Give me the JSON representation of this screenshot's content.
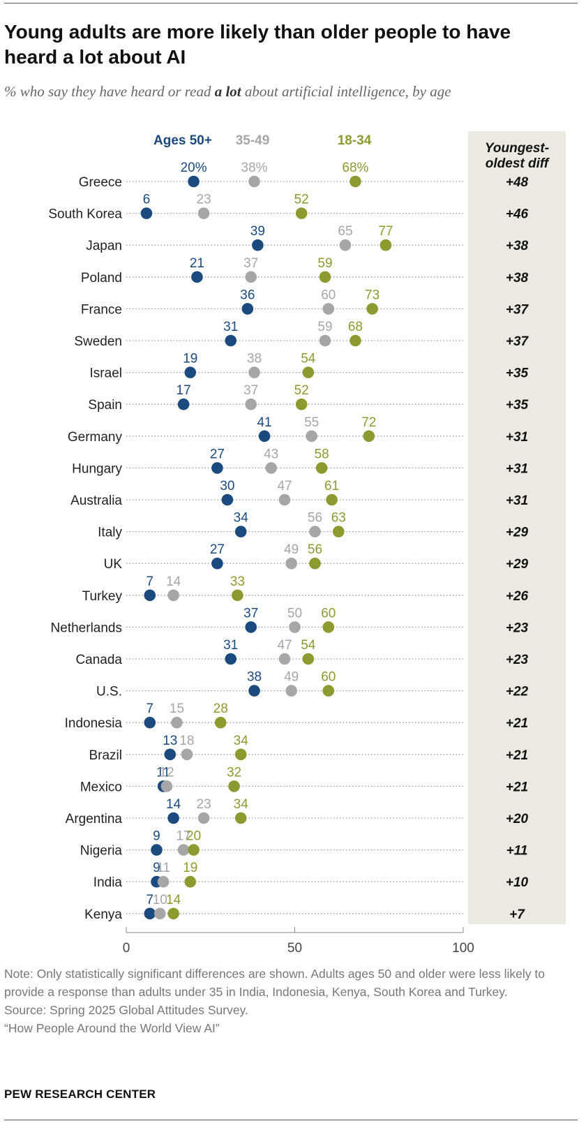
{
  "title": "Young adults are more likely than older people to have heard a lot about AI",
  "subtitle": {
    "before": "% who say they have heard or read ",
    "emphasis": "a lot",
    "after": " about artificial intelligence, by age"
  },
  "diff_header": "Youngest-oldest diff",
  "colors": {
    "ages_50_plus": "#1a4a7e",
    "ages_35_49": "#a6a6a6",
    "ages_18_34": "#8c9a2f",
    "panel": "#ece9e1"
  },
  "chart_data": {
    "type": "dot",
    "xlim": [
      0,
      100
    ],
    "xticks": [
      "0",
      "50",
      "100"
    ],
    "series": [
      {
        "name": "Ages 50+",
        "key": "ages_50_plus"
      },
      {
        "name": "35-49",
        "key": "ages_35_49"
      },
      {
        "name": "18-34",
        "key": "ages_18_34"
      }
    ],
    "rows": [
      {
        "country": "Greece",
        "ages_50_plus": 20,
        "ages_35_49": 38,
        "ages_18_34": 68,
        "diff": "+48",
        "labels": [
          "20%",
          "38%",
          "68%"
        ]
      },
      {
        "country": "South Korea",
        "ages_50_plus": 6,
        "ages_35_49": 23,
        "ages_18_34": 52,
        "diff": "+46",
        "labels": [
          "6",
          "23",
          "52"
        ]
      },
      {
        "country": "Japan",
        "ages_50_plus": 39,
        "ages_35_49": 65,
        "ages_18_34": 77,
        "diff": "+38",
        "labels": [
          "39",
          "65",
          "77"
        ]
      },
      {
        "country": "Poland",
        "ages_50_plus": 21,
        "ages_35_49": 37,
        "ages_18_34": 59,
        "diff": "+38",
        "labels": [
          "21",
          "37",
          "59"
        ]
      },
      {
        "country": "France",
        "ages_50_plus": 36,
        "ages_35_49": 60,
        "ages_18_34": 73,
        "diff": "+37",
        "labels": [
          "36",
          "60",
          "73"
        ]
      },
      {
        "country": "Sweden",
        "ages_50_plus": 31,
        "ages_35_49": 59,
        "ages_18_34": 68,
        "diff": "+37",
        "labels": [
          "31",
          "59",
          "68"
        ]
      },
      {
        "country": "Israel",
        "ages_50_plus": 19,
        "ages_35_49": 38,
        "ages_18_34": 54,
        "diff": "+35",
        "labels": [
          "19",
          "38",
          "54"
        ]
      },
      {
        "country": "Spain",
        "ages_50_plus": 17,
        "ages_35_49": 37,
        "ages_18_34": 52,
        "diff": "+35",
        "labels": [
          "17",
          "37",
          "52"
        ]
      },
      {
        "country": "Germany",
        "ages_50_plus": 41,
        "ages_35_49": 55,
        "ages_18_34": 72,
        "diff": "+31",
        "labels": [
          "41",
          "55",
          "72"
        ]
      },
      {
        "country": "Hungary",
        "ages_50_plus": 27,
        "ages_35_49": 43,
        "ages_18_34": 58,
        "diff": "+31",
        "labels": [
          "27",
          "43",
          "58"
        ]
      },
      {
        "country": "Australia",
        "ages_50_plus": 30,
        "ages_35_49": 47,
        "ages_18_34": 61,
        "diff": "+31",
        "labels": [
          "30",
          "47",
          "61"
        ]
      },
      {
        "country": "Italy",
        "ages_50_plus": 34,
        "ages_35_49": 56,
        "ages_18_34": 63,
        "diff": "+29",
        "labels": [
          "34",
          "56",
          "63"
        ]
      },
      {
        "country": "UK",
        "ages_50_plus": 27,
        "ages_35_49": 49,
        "ages_18_34": 56,
        "diff": "+29",
        "labels": [
          "27",
          "49",
          "56"
        ]
      },
      {
        "country": "Turkey",
        "ages_50_plus": 7,
        "ages_35_49": 14,
        "ages_18_34": 33,
        "diff": "+26",
        "labels": [
          "7",
          "14",
          "33"
        ]
      },
      {
        "country": "Netherlands",
        "ages_50_plus": 37,
        "ages_35_49": 50,
        "ages_18_34": 60,
        "diff": "+23",
        "labels": [
          "37",
          "50",
          "60"
        ]
      },
      {
        "country": "Canada",
        "ages_50_plus": 31,
        "ages_35_49": 47,
        "ages_18_34": 54,
        "diff": "+23",
        "labels": [
          "31",
          "47",
          "54"
        ]
      },
      {
        "country": "U.S.",
        "ages_50_plus": 38,
        "ages_35_49": 49,
        "ages_18_34": 60,
        "diff": "+22",
        "labels": [
          "38",
          "49",
          "60"
        ]
      },
      {
        "country": "Indonesia",
        "ages_50_plus": 7,
        "ages_35_49": 15,
        "ages_18_34": 28,
        "diff": "+21",
        "labels": [
          "7",
          "15",
          "28"
        ]
      },
      {
        "country": "Brazil",
        "ages_50_plus": 13,
        "ages_35_49": 18,
        "ages_18_34": 34,
        "diff": "+21",
        "labels": [
          "13",
          "18",
          "34"
        ]
      },
      {
        "country": "Mexico",
        "ages_50_plus": 11,
        "ages_35_49": 12,
        "ages_18_34": 32,
        "diff": "+21",
        "labels": [
          "11",
          "12",
          "32"
        ]
      },
      {
        "country": "Argentina",
        "ages_50_plus": 14,
        "ages_35_49": 23,
        "ages_18_34": 34,
        "diff": "+20",
        "labels": [
          "14",
          "23",
          "34"
        ]
      },
      {
        "country": "Nigeria",
        "ages_50_plus": 9,
        "ages_35_49": 17,
        "ages_18_34": 20,
        "diff": "+11",
        "labels": [
          "9",
          "17",
          "20"
        ]
      },
      {
        "country": "India",
        "ages_50_plus": 9,
        "ages_35_49": 11,
        "ages_18_34": 19,
        "diff": "+10",
        "labels": [
          "9",
          "11",
          "19"
        ]
      },
      {
        "country": "Kenya",
        "ages_50_plus": 7,
        "ages_35_49": 10,
        "ages_18_34": 14,
        "diff": "+7",
        "labels": [
          "7",
          "10",
          "14"
        ]
      }
    ]
  },
  "notes": {
    "note": "Note: Only statistically significant differences are shown. Adults ages 50 and older were less likely to provide a response than adults under 35 in India, Indonesia, Kenya, South Korea and Turkey.",
    "source": "Source: Spring 2025 Global Attitudes Survey.",
    "report": "“How People Around the World View AI”"
  },
  "logo": "PEW RESEARCH CENTER"
}
